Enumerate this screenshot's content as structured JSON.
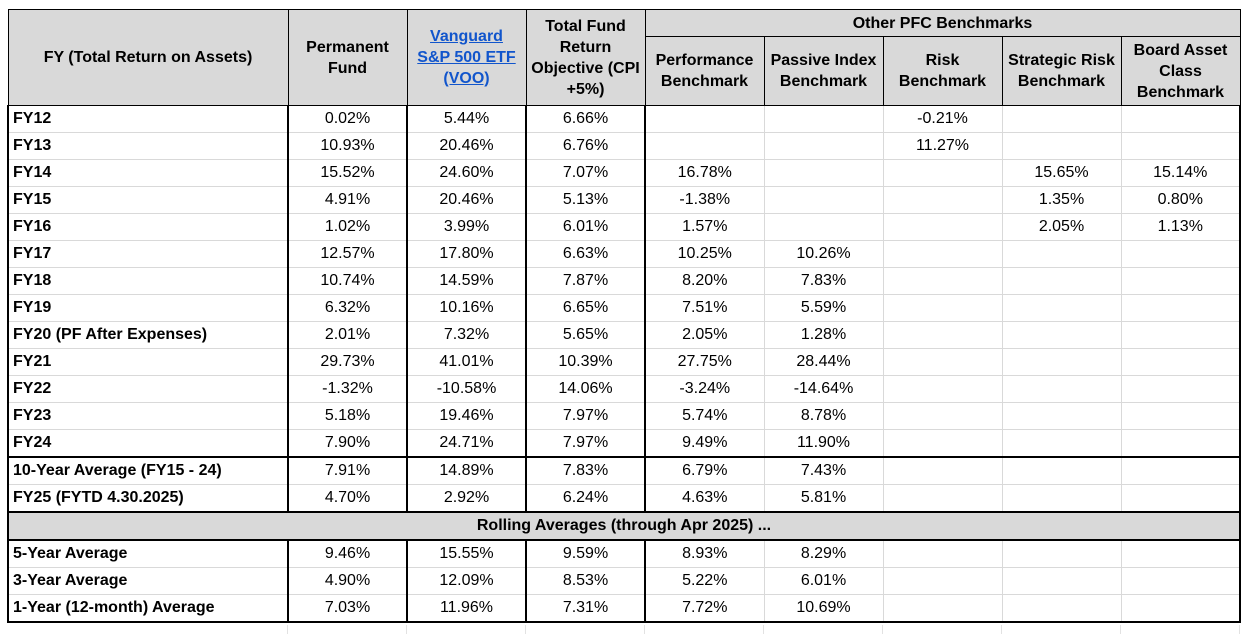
{
  "headers": {
    "fy": "FY (Total Return on Assets)",
    "permanent_fund": "Permanent Fund",
    "voo": "Vanguard S&P 500 ETF (VOO)",
    "objective": "Total Fund Return Objective (CPI +5%)",
    "group": "Other PFC Benchmarks",
    "performance": "Performance Benchmark",
    "passive": "Passive Index Benchmark",
    "risk": "Risk Benchmark",
    "strategic": "Strategic Risk Benchmark",
    "board": "Board Asset Class Benchmark"
  },
  "rows": [
    {
      "label": "FY12",
      "pf": "0.02%",
      "voo": "5.44%",
      "obj": "6.66%",
      "perf": "",
      "passive": "",
      "risk": "-0.21%",
      "strat": "",
      "board": ""
    },
    {
      "label": "FY13",
      "pf": "10.93%",
      "voo": "20.46%",
      "obj": "6.76%",
      "perf": "",
      "passive": "",
      "risk": "11.27%",
      "strat": "",
      "board": ""
    },
    {
      "label": "FY14",
      "pf": "15.52%",
      "voo": "24.60%",
      "obj": "7.07%",
      "perf": "16.78%",
      "passive": "",
      "risk": "",
      "strat": "15.65%",
      "board": "15.14%"
    },
    {
      "label": "FY15",
      "pf": "4.91%",
      "voo": "20.46%",
      "obj": "5.13%",
      "perf": "-1.38%",
      "passive": "",
      "risk": "",
      "strat": "1.35%",
      "board": "0.80%"
    },
    {
      "label": "FY16",
      "pf": "1.02%",
      "voo": "3.99%",
      "obj": "6.01%",
      "perf": "1.57%",
      "passive": "",
      "risk": "",
      "strat": "2.05%",
      "board": "1.13%"
    },
    {
      "label": "FY17",
      "pf": "12.57%",
      "voo": "17.80%",
      "obj": "6.63%",
      "perf": "10.25%",
      "passive": "10.26%",
      "risk": "",
      "strat": "",
      "board": ""
    },
    {
      "label": "FY18",
      "pf": "10.74%",
      "voo": "14.59%",
      "obj": "7.87%",
      "perf": "8.20%",
      "passive": "7.83%",
      "risk": "",
      "strat": "",
      "board": ""
    },
    {
      "label": "FY19",
      "pf": "6.32%",
      "voo": "10.16%",
      "obj": "6.65%",
      "perf": "7.51%",
      "passive": "5.59%",
      "risk": "",
      "strat": "",
      "board": ""
    },
    {
      "label": "FY20 (PF After Expenses)",
      "pf": "2.01%",
      "voo": "7.32%",
      "obj": "5.65%",
      "perf": "2.05%",
      "passive": "1.28%",
      "risk": "",
      "strat": "",
      "board": ""
    },
    {
      "label": "FY21",
      "pf": "29.73%",
      "voo": "41.01%",
      "obj": "10.39%",
      "perf": "27.75%",
      "passive": "28.44%",
      "risk": "",
      "strat": "",
      "board": ""
    },
    {
      "label": "FY22",
      "pf": "-1.32%",
      "voo": "-10.58%",
      "obj": "14.06%",
      "perf": "-3.24%",
      "passive": "-14.64%",
      "risk": "",
      "strat": "",
      "board": ""
    },
    {
      "label": "FY23",
      "pf": "5.18%",
      "voo": "19.46%",
      "obj": "7.97%",
      "perf": "5.74%",
      "passive": "8.78%",
      "risk": "",
      "strat": "",
      "board": ""
    },
    {
      "label": "FY24",
      "pf": "7.90%",
      "voo": "24.71%",
      "obj": "7.97%",
      "perf": "9.49%",
      "passive": "11.90%",
      "risk": "",
      "strat": "",
      "board": ""
    }
  ],
  "summary_rows": [
    {
      "label": "10-Year Average (FY15 - 24)",
      "pf": "7.91%",
      "voo": "14.89%",
      "obj": "7.83%",
      "perf": "6.79%",
      "passive": "7.43%",
      "risk": "",
      "strat": "",
      "board": ""
    },
    {
      "label": "FY25 (FYTD 4.30.2025)",
      "pf": "4.70%",
      "voo": "2.92%",
      "obj": "6.24%",
      "perf": "4.63%",
      "passive": "5.81%",
      "risk": "",
      "strat": "",
      "board": ""
    }
  ],
  "section_title": "Rolling Averages (through Apr 2025) ...",
  "rolling_rows": [
    {
      "label": "5-Year Average",
      "pf": "9.46%",
      "voo": "15.55%",
      "obj": "9.59%",
      "perf": "8.93%",
      "passive": "8.29%",
      "risk": "",
      "strat": "",
      "board": ""
    },
    {
      "label": "3-Year Average",
      "pf": "4.90%",
      "voo": "12.09%",
      "obj": "8.53%",
      "perf": "5.22%",
      "passive": "6.01%",
      "risk": "",
      "strat": "",
      "board": ""
    },
    {
      "label": "1-Year (12-month) Average",
      "pf": "7.03%",
      "voo": "11.96%",
      "obj": "7.31%",
      "perf": "7.72%",
      "passive": "10.69%",
      "risk": "",
      "strat": "",
      "board": ""
    }
  ],
  "colors": {
    "header_bg": "#d9d9d9",
    "link": "#1155cc",
    "grid": "#d9d9d9",
    "border": "#000000"
  }
}
